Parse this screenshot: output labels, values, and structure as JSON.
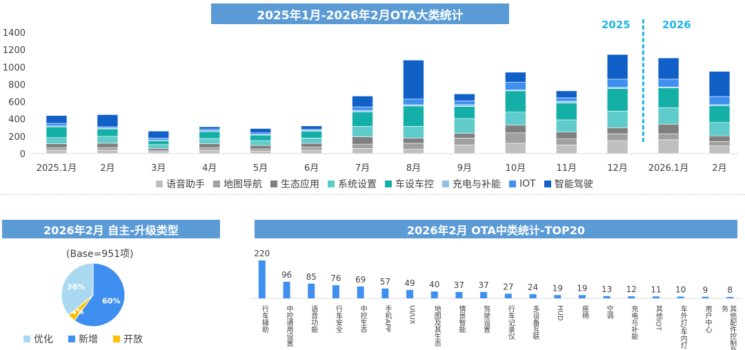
{
  "title_top": "2025年1月-2026年2月OTA大类统计",
  "year_labels": [
    "2025",
    "2026"
  ],
  "chart_data": [
    {
      "type": "bar",
      "stacked": true,
      "title": "2025年1月-2026年2月OTA大类统计",
      "categories": [
        "2025.1月",
        "2月",
        "3月",
        "4月",
        "5月",
        "6月",
        "7月",
        "8月",
        "9月",
        "10月",
        "11月",
        "12月",
        "2026.1月",
        "2月"
      ],
      "ylim": [
        0,
        1400
      ],
      "yticks": [
        0,
        200,
        400,
        600,
        800,
        1000,
        1200,
        1400
      ],
      "series": [
        {
          "name": "语音助手",
          "color": "#bfbfbf",
          "values": [
            40,
            40,
            20,
            40,
            30,
            40,
            60,
            50,
            100,
            120,
            100,
            150,
            160,
            90
          ]
        },
        {
          "name": "地图导航",
          "color": "#a0a0a0",
          "values": [
            30,
            30,
            15,
            30,
            25,
            35,
            50,
            70,
            80,
            120,
            70,
            80,
            70,
            50
          ]
        },
        {
          "name": "生态应用",
          "color": "#7f7f7f",
          "values": [
            45,
            50,
            25,
            45,
            40,
            45,
            85,
            60,
            55,
            90,
            80,
            70,
            110,
            65
          ]
        },
        {
          "name": "系统设置",
          "color": "#5fcbcb",
          "values": [
            70,
            80,
            45,
            60,
            55,
            60,
            120,
            135,
            170,
            150,
            140,
            190,
            190,
            155
          ]
        },
        {
          "name": "车设车控",
          "color": "#14b0a8",
          "values": [
            125,
            85,
            45,
            80,
            65,
            80,
            165,
            235,
            140,
            245,
            195,
            260,
            230,
            195
          ]
        },
        {
          "name": "充电与补能",
          "color": "#8fc3ea",
          "values": [
            10,
            10,
            5,
            10,
            5,
            10,
            20,
            15,
            20,
            10,
            20,
            15,
            10,
            10
          ]
        },
        {
          "name": "IOT",
          "color": "#3f8ff0",
          "values": [
            30,
            15,
            25,
            20,
            20,
            10,
            40,
            65,
            45,
            90,
            40,
            95,
            90,
            95
          ]
        },
        {
          "name": "智能驾驶",
          "color": "#1060c8",
          "values": [
            90,
            140,
            80,
            25,
            50,
            40,
            125,
            450,
            80,
            115,
            80,
            285,
            245,
            290
          ]
        }
      ]
    },
    {
      "type": "pie",
      "title": "2026年2月 自主-升级类型",
      "subtitle": "(Base=951项)",
      "slices": [
        {
          "name": "新增",
          "value": 60,
          "label": "60%",
          "color": "#3f8ff0"
        },
        {
          "name": "开放",
          "value": 4,
          "label": "4%",
          "color": "#ffc000"
        },
        {
          "name": "优化",
          "value": 36,
          "label": "36%",
          "color": "#a9d8f0"
        }
      ],
      "legend_order": [
        "优化",
        "新增",
        "开放"
      ]
    },
    {
      "type": "bar",
      "title": "2026年2月 OTA中类统计-TOP20",
      "categories": [
        "行车辅助",
        "中控通用设置",
        "语音功能",
        "行车安全",
        "中控生态",
        "手机APP",
        "UI/UX",
        "地图及其生态",
        "情景智能",
        "驾驶设置",
        "行车记录仪",
        "多设备互联",
        "HUD",
        "座椅",
        "空调",
        "充电与补能",
        "其他IOT",
        "车外灯/车内灯",
        "用户中心",
        "其他配件控制及服务"
      ],
      "values": [
        220,
        96,
        85,
        76,
        69,
        57,
        49,
        40,
        37,
        37,
        27,
        24,
        19,
        19,
        13,
        12,
        11,
        10,
        9,
        8
      ],
      "color": "#3f8ff0"
    }
  ]
}
